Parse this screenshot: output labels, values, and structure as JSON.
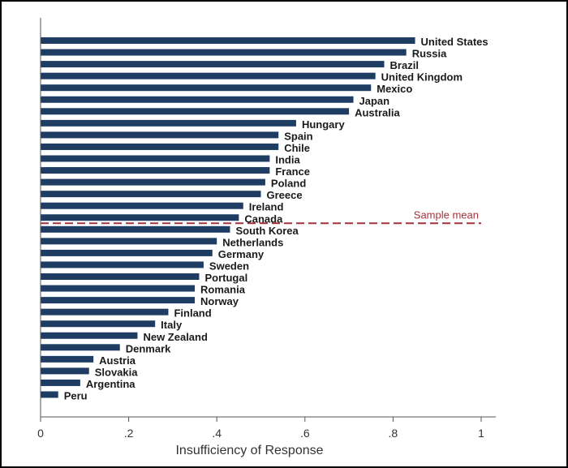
{
  "chart_data": {
    "type": "bar",
    "orientation": "horizontal",
    "xlabel": "Insufficiency of Response",
    "xlim": [
      0,
      1
    ],
    "xticks": [
      "0",
      ".2",
      ".4",
      ".6",
      ".8",
      "1"
    ],
    "bar_color": "#1f3d63",
    "mean_color": "#a3323b",
    "reference_line": {
      "label": "Sample mean",
      "after_category": "Canada"
    },
    "categories": [
      "United States",
      "Russia",
      "Brazil",
      "United Kingdom",
      "Mexico",
      "Japan",
      "Australia",
      "Hungary",
      "Spain",
      "Chile",
      "India",
      "France",
      "Poland",
      "Greece",
      "Ireland",
      "Canada",
      "South Korea",
      "Netherlands",
      "Germany",
      "Sweden",
      "Portugal",
      "Romania",
      "Norway",
      "Finland",
      "Italy",
      "New Zealand",
      "Denmark",
      "Austria",
      "Slovakia",
      "Argentina",
      "Peru"
    ],
    "values": [
      0.85,
      0.83,
      0.78,
      0.76,
      0.75,
      0.71,
      0.7,
      0.58,
      0.54,
      0.54,
      0.52,
      0.52,
      0.51,
      0.5,
      0.46,
      0.45,
      0.43,
      0.4,
      0.39,
      0.37,
      0.36,
      0.35,
      0.35,
      0.29,
      0.26,
      0.22,
      0.18,
      0.12,
      0.11,
      0.09,
      0.04
    ]
  }
}
